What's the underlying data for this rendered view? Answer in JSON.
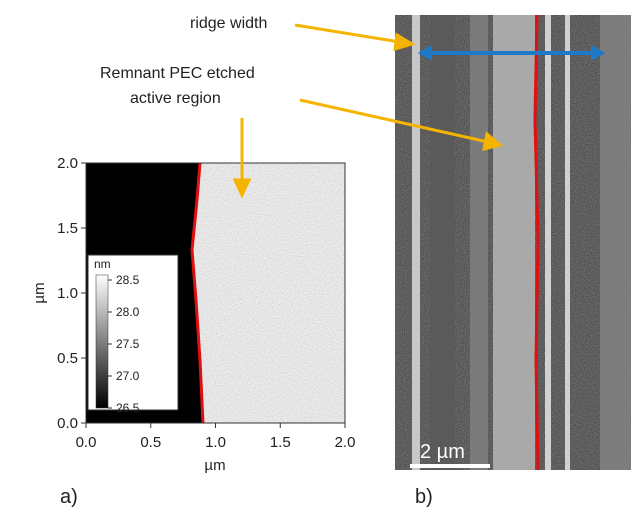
{
  "annotations": {
    "ridge": "ridge width",
    "remnant_line1": "Remnant PEC etched",
    "remnant_line2": "active region"
  },
  "panel_a": {
    "label": "a)",
    "x_axis": {
      "label": "µm",
      "ticks": [
        "0.0",
        "0.5",
        "1.0",
        "1.5",
        "2.0"
      ]
    },
    "y_axis": {
      "label": "µm",
      "ticks": [
        "0.0",
        "0.5",
        "1.0",
        "1.5",
        "2.0"
      ]
    },
    "colorbar": {
      "unit": "nm",
      "ticks": [
        "28.5",
        "28.0",
        "27.5",
        "27.0",
        "26.5"
      ]
    }
  },
  "panel_b": {
    "label": "b)",
    "scale_bar": "2 µm"
  }
}
